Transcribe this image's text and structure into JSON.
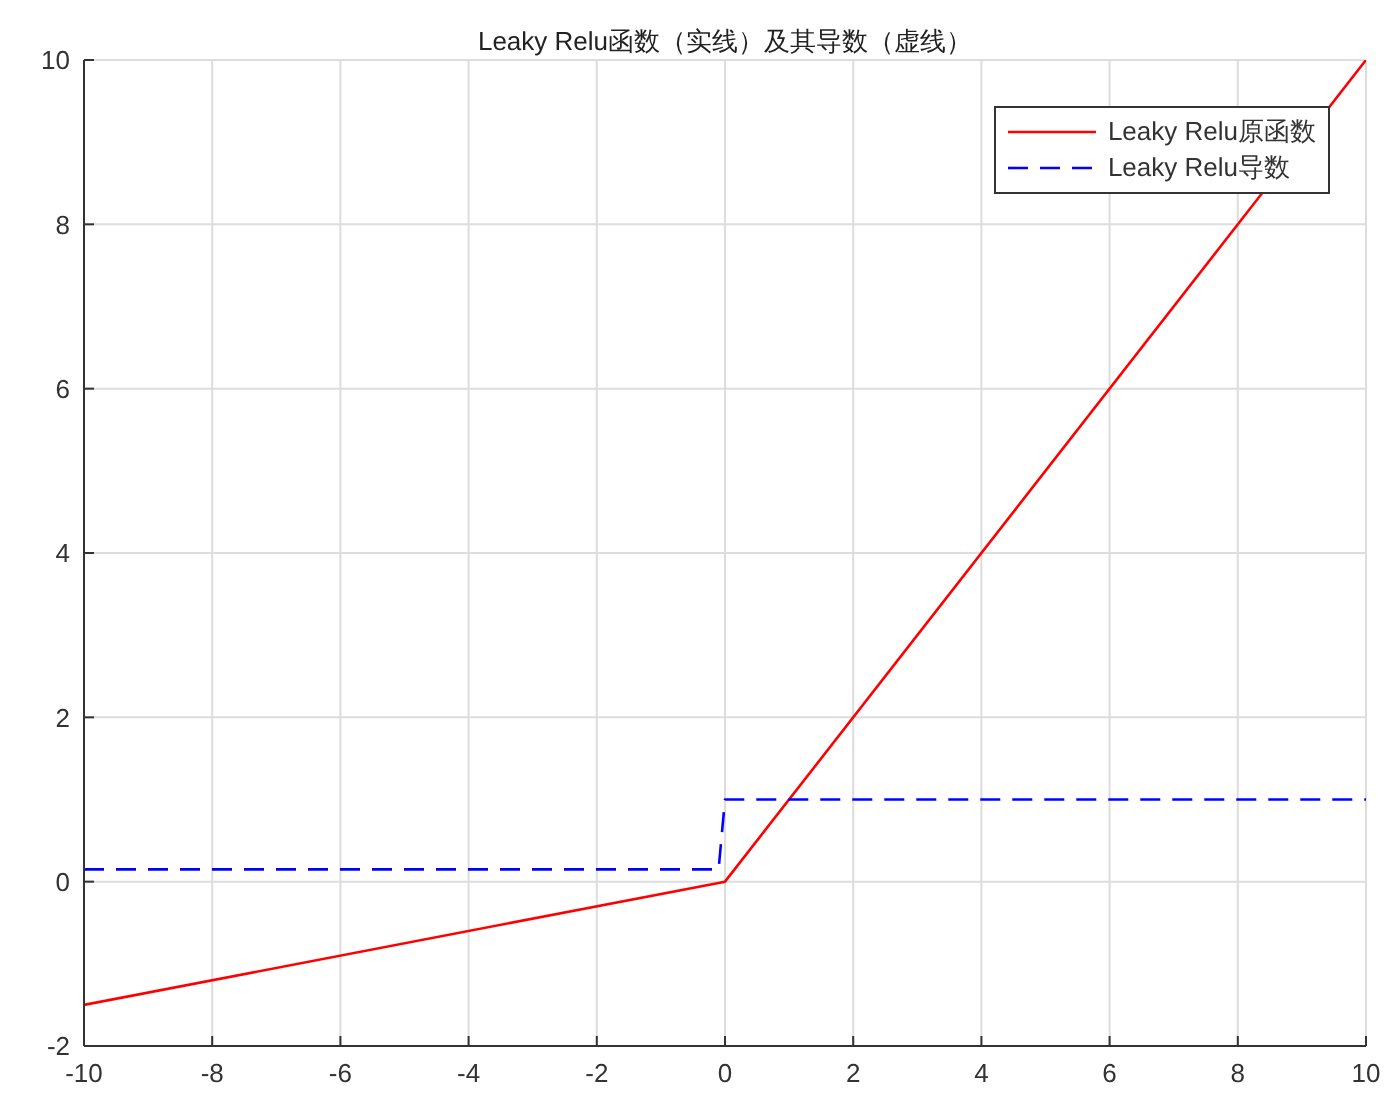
{
  "chart_data": {
    "type": "line",
    "title": "Leaky Relu函数（实线）及其导数（虚线）",
    "xlim": [
      -10,
      10
    ],
    "xticks": [
      -10,
      -8,
      -6,
      -4,
      -2,
      0,
      2,
      4,
      6,
      8,
      10
    ],
    "ylim": [
      -2,
      10
    ],
    "yticks": [
      -2,
      0,
      2,
      4,
      6,
      8,
      10
    ],
    "grid": true,
    "legend": "top right",
    "marker": "none",
    "series": [
      {
        "name": "Leaky Relu原函数",
        "color": "#ff0000",
        "line_style": "solid",
        "x": [
          -10,
          0,
          10
        ],
        "values": [
          -1.5,
          0,
          10
        ]
      },
      {
        "name": "Leaky Relu导数",
        "color": "#0000ff",
        "line_style": "dashed",
        "x": [
          -10,
          -0.1,
          0,
          10
        ],
        "values": [
          0.15,
          0.15,
          1,
          1
        ]
      }
    ]
  }
}
